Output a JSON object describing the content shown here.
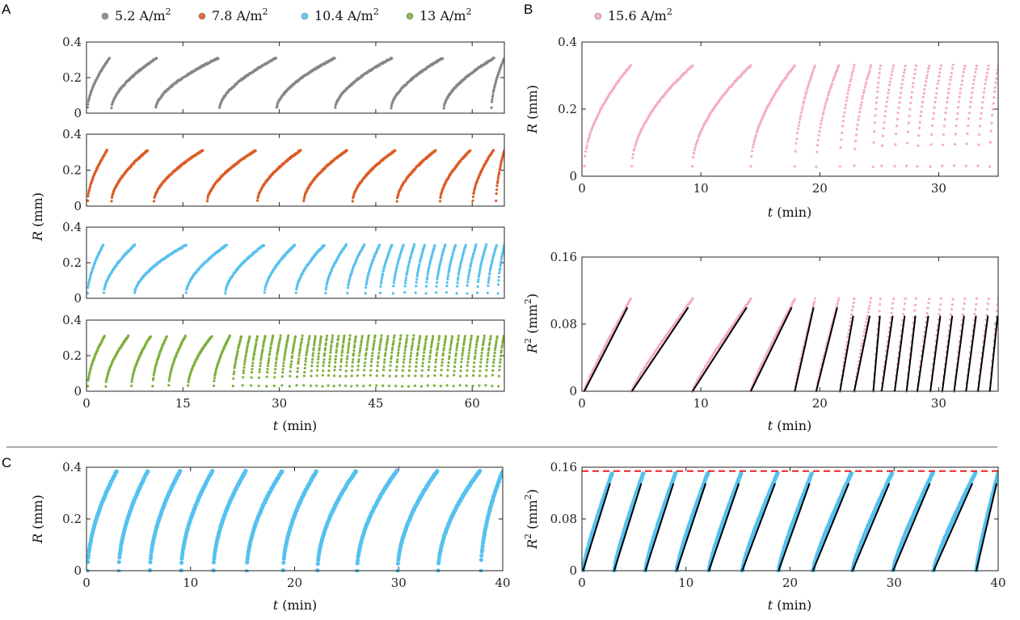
{
  "panel_letters": {
    "a": "A",
    "b": "B",
    "c": "C"
  },
  "legend": {
    "a": [
      {
        "label": "5.2 A/m",
        "sup": "2",
        "color": "#808080"
      },
      {
        "label": "7.8 A/m",
        "sup": "2",
        "color": "#d95319"
      },
      {
        "label": "10.4 A/m",
        "sup": "2",
        "color": "#4dbeee"
      },
      {
        "label": "13 A/m",
        "sup": "2",
        "color": "#77ac30"
      }
    ],
    "b": [
      {
        "label": "15.6 A/m",
        "sup": "2",
        "color": "#f4a6c8"
      }
    ]
  },
  "axis_text": {
    "R_label": {
      "var": "R",
      "unit": " (mm)"
    },
    "R2_label": {
      "var": "R",
      "sup": "2",
      "unit": " (mm",
      "unit_sup": "2",
      "unit_end": ")"
    },
    "t_label": {
      "var": "t",
      "unit": " (min)"
    }
  },
  "chart_data": [
    {
      "id": "A1",
      "type": "scatter",
      "color": "#808080",
      "xlim": [
        0,
        65
      ],
      "ylim": [
        0,
        0.4
      ],
      "yticks": [
        "0",
        "0.2",
        "0.4"
      ],
      "cycles": [
        [
          0.2,
          3.6
        ],
        [
          3.9,
          10.9
        ],
        [
          10.8,
          20.5
        ],
        [
          20.7,
          29.5
        ],
        [
          29.6,
          38.6
        ],
        [
          38.7,
          47.5
        ],
        [
          47.4,
          55.4
        ],
        [
          55.6,
          63.4
        ],
        [
          63.0,
          65
        ]
      ],
      "r_min": 0.03,
      "r_max": 0.31,
      "shape": 0.6
    },
    {
      "id": "A2",
      "type": "scatter",
      "color": "#d95319",
      "xlim": [
        0,
        65
      ],
      "ylim": [
        0,
        0.4
      ],
      "yticks": [
        "0",
        "0.2",
        "0.4"
      ],
      "cycles": [
        [
          0.2,
          3.2
        ],
        [
          3.9,
          9.5
        ],
        [
          10.5,
          18.1
        ],
        [
          18.8,
          26.3
        ],
        [
          26.6,
          33.3
        ],
        [
          33.8,
          40.5
        ],
        [
          41.4,
          48.0
        ],
        [
          48.3,
          54.3
        ],
        [
          55.0,
          59.7
        ],
        [
          60.1,
          63.3
        ],
        [
          63.7,
          65
        ]
      ],
      "r_min": 0.03,
      "r_max": 0.31,
      "shape": 0.6
    },
    {
      "id": "A3",
      "type": "scatter",
      "color": "#4dbeee",
      "xlim": [
        0,
        65
      ],
      "ylim": [
        0,
        0.4
      ],
      "yticks": [
        "0",
        "0.2",
        "0.4"
      ],
      "cycles": [
        [
          0.2,
          2.6
        ],
        [
          2.7,
          7.5
        ],
        [
          7.5,
          15.5
        ],
        [
          15.5,
          21.8
        ],
        [
          21.6,
          27.6
        ],
        [
          27.7,
          32.4
        ],
        [
          32.6,
          37.0
        ],
        [
          37.2,
          40.4
        ],
        [
          40.6,
          43.2
        ],
        [
          43.4,
          45.6
        ],
        [
          45.7,
          47.5
        ],
        [
          47.7,
          49.3
        ],
        [
          49.5,
          51.0
        ],
        [
          51.2,
          52.6
        ],
        [
          52.8,
          54.2
        ],
        [
          54.4,
          55.8
        ],
        [
          56.0,
          57.4
        ],
        [
          57.6,
          59.0
        ],
        [
          59.2,
          60.6
        ],
        [
          60.8,
          62.2
        ],
        [
          62.4,
          63.8
        ],
        [
          64.0,
          65
        ]
      ],
      "r_min": 0.03,
      "r_max": 0.3,
      "shape": 0.6
    },
    {
      "id": "A4",
      "type": "scatter",
      "color": "#77ac30",
      "xlim": [
        0,
        65
      ],
      "ylim": [
        0,
        0.4
      ],
      "yticks": [
        "0",
        "0.2",
        "0.4"
      ],
      "cycles": [
        [
          0.2,
          2.8
        ],
        [
          3.0,
          6.5
        ],
        [
          7.0,
          10.0
        ],
        [
          10.3,
          12.5
        ],
        [
          12.8,
          15.4
        ],
        [
          15.8,
          19.5
        ],
        [
          19.8,
          22.3
        ],
        [
          22.8,
          24.1
        ],
        [
          24.3,
          25.4
        ],
        [
          25.6,
          26.6
        ],
        [
          26.8,
          27.8
        ],
        [
          28.0,
          29.0
        ],
        [
          29.2,
          30.2
        ],
        [
          30.4,
          31.4
        ],
        [
          31.6,
          32.5
        ],
        [
          32.7,
          33.6
        ],
        [
          33.8,
          34.7
        ],
        [
          34.9,
          35.6
        ],
        [
          35.8,
          36.5
        ],
        [
          36.7,
          37.4
        ],
        [
          37.6,
          38.3
        ],
        [
          38.5,
          39.2
        ],
        [
          39.4,
          40.1
        ],
        [
          40.3,
          41.0
        ],
        [
          41.2,
          41.9
        ],
        [
          42.1,
          42.9
        ],
        [
          43.1,
          43.9
        ],
        [
          44.1,
          44.9
        ],
        [
          45.1,
          45.9
        ],
        [
          46.1,
          46.9
        ],
        [
          47.1,
          47.9
        ],
        [
          48.1,
          48.9
        ],
        [
          49.1,
          49.9
        ],
        [
          50.1,
          50.9
        ],
        [
          51.1,
          51.9
        ],
        [
          52.1,
          52.9
        ],
        [
          53.1,
          53.9
        ],
        [
          54.1,
          54.9
        ],
        [
          55.1,
          55.9
        ],
        [
          56.1,
          56.9
        ],
        [
          57.1,
          57.9
        ],
        [
          58.1,
          58.9
        ],
        [
          59.1,
          59.9
        ],
        [
          60.1,
          60.9
        ],
        [
          61.1,
          61.9
        ],
        [
          62.1,
          62.9
        ],
        [
          63.1,
          63.9
        ],
        [
          64.1,
          64.9
        ]
      ],
      "r_min": 0.03,
      "r_max": 0.31,
      "shape": 0.6
    },
    {
      "id": "B1",
      "type": "scatter",
      "color": "#f4a6c8",
      "xlim": [
        0,
        35
      ],
      "ylim": [
        0,
        0.4
      ],
      "yticks": [
        "0",
        "0.2",
        "0.4"
      ],
      "xticks": [
        "0",
        "10",
        "20",
        "30"
      ],
      "cycles": [
        [
          0.2,
          4.1
        ],
        [
          4.2,
          9.3
        ],
        [
          9.3,
          14.2
        ],
        [
          14.2,
          17.9
        ],
        [
          17.9,
          19.6
        ],
        [
          19.7,
          21.6
        ],
        [
          21.7,
          22.9
        ],
        [
          22.9,
          24.3
        ],
        [
          24.5,
          25.1
        ],
        [
          25.2,
          26.2
        ],
        [
          26.3,
          27.2
        ],
        [
          27.3,
          28.1
        ],
        [
          28.2,
          29.2
        ],
        [
          29.3,
          30.2
        ],
        [
          30.3,
          31.2
        ],
        [
          31.3,
          32.2
        ],
        [
          32.3,
          33.2
        ],
        [
          33.3,
          34.2
        ],
        [
          34.3,
          35
        ]
      ],
      "r_min": 0.03,
      "r_max": 0.33,
      "shape": 0.55
    },
    {
      "id": "B2",
      "type": "scatter+line",
      "color": "#f4a6c8",
      "line_color": "#000000",
      "xlim": [
        0,
        35
      ],
      "ylim": [
        0,
        0.16
      ],
      "yticks": [
        "0",
        "0.08",
        "0.16"
      ],
      "xticks": [
        "0",
        "10",
        "20",
        "30"
      ],
      "cycles": [
        [
          0.2,
          4.1
        ],
        [
          4.2,
          9.3
        ],
        [
          9.3,
          14.2
        ],
        [
          14.2,
          17.9
        ],
        [
          17.9,
          19.6
        ],
        [
          19.7,
          21.6
        ],
        [
          21.7,
          22.9
        ],
        [
          22.9,
          24.3
        ],
        [
          24.5,
          25.1
        ],
        [
          25.2,
          26.2
        ],
        [
          26.3,
          27.2
        ],
        [
          27.3,
          28.1
        ],
        [
          28.2,
          29.2
        ],
        [
          29.3,
          30.2
        ],
        [
          30.3,
          31.2
        ],
        [
          31.3,
          32.2
        ],
        [
          32.3,
          33.2
        ],
        [
          33.3,
          34.2
        ],
        [
          34.3,
          35
        ]
      ],
      "r2_max": 0.108,
      "fit_max": 0.1,
      "shape": 0.85
    },
    {
      "id": "C1",
      "type": "scatter",
      "color": "#4dbeee",
      "xlim": [
        0,
        40
      ],
      "ylim": [
        0,
        0.4
      ],
      "yticks": [
        "0",
        "0.2",
        "0.4"
      ],
      "xticks": [
        "0",
        "10",
        "20",
        "30",
        "40"
      ],
      "cycles": [
        [
          0.1,
          2.9
        ],
        [
          3.1,
          5.9
        ],
        [
          6.1,
          9.0
        ],
        [
          9.1,
          12.1
        ],
        [
          12.2,
          15.3
        ],
        [
          15.4,
          18.8
        ],
        [
          18.9,
          22.1
        ],
        [
          22.2,
          25.9
        ],
        [
          26.0,
          29.8
        ],
        [
          29.9,
          33.7
        ],
        [
          33.8,
          37.8
        ],
        [
          37.9,
          40
        ]
      ],
      "r_min": 0.0,
      "r_max": 0.385,
      "shape": 0.55,
      "thick": true
    },
    {
      "id": "C2",
      "type": "scatter+line",
      "color": "#4dbeee",
      "line_color": "#000000",
      "xlim": [
        0,
        40
      ],
      "ylim": [
        0,
        0.16
      ],
      "yticks": [
        "0",
        "0.08",
        "0.16"
      ],
      "xticks": [
        "0",
        "10",
        "20",
        "30",
        "40"
      ],
      "cycles": [
        [
          0.1,
          2.9
        ],
        [
          3.1,
          5.9
        ],
        [
          6.1,
          9.0
        ],
        [
          9.1,
          12.1
        ],
        [
          12.2,
          15.3
        ],
        [
          15.4,
          18.8
        ],
        [
          18.9,
          22.1
        ],
        [
          22.2,
          25.9
        ],
        [
          26.0,
          29.8
        ],
        [
          29.9,
          33.7
        ],
        [
          33.8,
          37.8
        ],
        [
          37.9,
          40
        ]
      ],
      "r2_max": 0.148,
      "fit_max": 0.135,
      "shape": 0.8,
      "thick": true,
      "reference_line": {
        "y": 0.154,
        "color": "#e82020",
        "style": "dashed"
      }
    }
  ]
}
